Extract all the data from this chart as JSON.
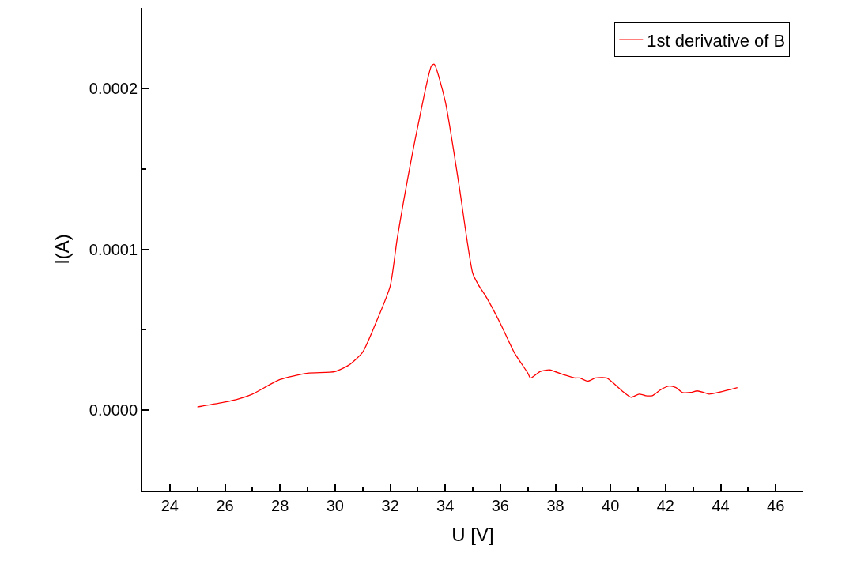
{
  "chart_data": {
    "type": "line",
    "xlabel": "U [V]",
    "ylabel": "I(A)",
    "xlim": [
      23,
      47
    ],
    "xticks": [
      {
        "value": 23,
        "label": null
      },
      24,
      {
        "value": 25,
        "label": null
      },
      26,
      {
        "value": 27,
        "label": null
      },
      28,
      {
        "value": 29,
        "label": null
      },
      30,
      {
        "value": 31,
        "label": null
      },
      32,
      {
        "value": 33,
        "label": null
      },
      34,
      {
        "value": 35,
        "label": null
      },
      36,
      {
        "value": 37,
        "label": null
      },
      38,
      {
        "value": 39,
        "label": null
      },
      40,
      {
        "value": 41,
        "label": null
      },
      42,
      {
        "value": 43,
        "label": null
      },
      44,
      {
        "value": 45,
        "label": null
      },
      46
    ],
    "ylim": [
      -5e-05,
      0.00025
    ],
    "yticks": [
      {
        "value": -5e-05,
        "label": null
      },
      {
        "value": 0,
        "label": "0.0000"
      },
      {
        "value": 5e-05,
        "label": null
      },
      {
        "value": 0.0001,
        "label": "0.0001"
      },
      {
        "value": 0.00015,
        "label": null
      },
      {
        "value": 0.0002,
        "label": "0.0002"
      }
    ],
    "legend": "top right",
    "grid": false,
    "marker": "none",
    "line_style": "solid",
    "series": [
      {
        "name": "1st derivative of B",
        "color": "#ff0000",
        "x": [
          25,
          26,
          26.5,
          27,
          28,
          29,
          30,
          30.5,
          31,
          31.5,
          32,
          32.25,
          32.5,
          33,
          33.5,
          33.6,
          34,
          34.5,
          35,
          35.2,
          35.5,
          36,
          36.5,
          37,
          37.1,
          37.44,
          37.79,
          38.3,
          38.7,
          38.88,
          39.17,
          39.46,
          39.86,
          40.42,
          40.75,
          41.04,
          41.28,
          41.52,
          41.85,
          42.14,
          42.38,
          42.62,
          42.91,
          43.15,
          43.39,
          43.58,
          44.61
        ],
        "values": [
          2e-06,
          5e-06,
          7e-06,
          1e-05,
          1.9e-05,
          2.3e-05,
          2.4e-05,
          2.8e-05,
          3.6e-05,
          5.5e-05,
          7.7e-05,
          0.000106,
          0.000131,
          0.000176,
          0.000214,
          0.000215,
          0.000192,
          0.00014,
          8.5e-05,
          7.8e-05,
          7e-05,
          5.4e-05,
          3.6e-05,
          2.3e-05,
          2e-05,
          2.4e-05,
          2.5e-05,
          2.2e-05,
          2e-05,
          2e-05,
          1.8e-05,
          2e-05,
          2e-05,
          1.2e-05,
          8e-06,
          1e-05,
          9e-06,
          9e-06,
          1.3e-05,
          1.5e-05,
          1.4e-05,
          1.1e-05,
          1.1e-05,
          1.2e-05,
          1.1e-05,
          1e-05,
          1.4e-05
        ]
      }
    ]
  }
}
